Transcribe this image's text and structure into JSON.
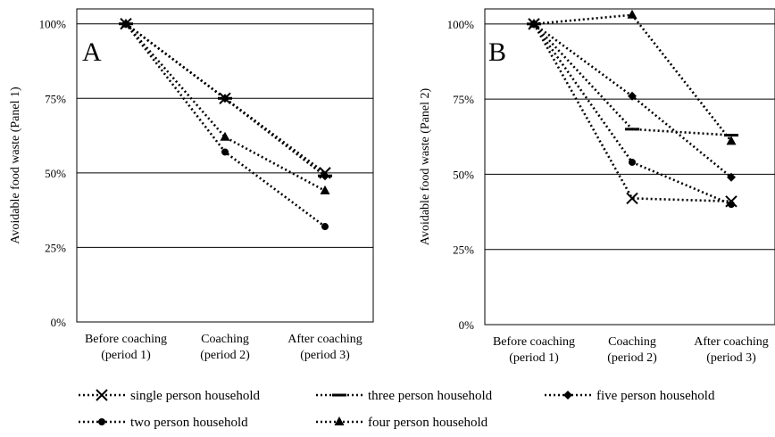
{
  "chart_data": [
    {
      "type": "line",
      "panel_label": "A",
      "ylabel": "Avoidable food waste (Panel 1)",
      "categories": [
        [
          "Before coaching",
          "(period 1)"
        ],
        [
          "Coaching",
          "(period 2)"
        ],
        [
          "After coaching",
          "(period 3)"
        ]
      ],
      "y_ticks": [
        "0%",
        "25%",
        "50%",
        "75%",
        "100%"
      ],
      "ylim": [
        0,
        105
      ],
      "grid": true,
      "series": [
        {
          "name": "single person household",
          "marker": "x",
          "values": [
            100,
            75,
            50
          ]
        },
        {
          "name": "two person household",
          "marker": "circle",
          "values": [
            100,
            57,
            32
          ]
        },
        {
          "name": "three person household",
          "marker": "dash",
          "values": [
            100,
            75,
            49
          ]
        },
        {
          "name": "four person household",
          "marker": "triangle",
          "values": [
            100,
            62,
            44
          ]
        },
        {
          "name": "five person household",
          "marker": "diamond",
          "values": [
            100,
            75,
            49
          ]
        }
      ]
    },
    {
      "type": "line",
      "panel_label": "B",
      "ylabel": "Avoidable food waste (Panel 2)",
      "categories": [
        [
          "Before coaching",
          "(period 1)"
        ],
        [
          "Coaching",
          "(period 2)"
        ],
        [
          "After coaching",
          "(period 3)"
        ]
      ],
      "y_ticks": [
        "0%",
        "25%",
        "50%",
        "75%",
        "100%"
      ],
      "ylim": [
        0,
        105
      ],
      "grid": true,
      "series": [
        {
          "name": "single person household",
          "marker": "x",
          "values": [
            100,
            42,
            41
          ]
        },
        {
          "name": "two person household",
          "marker": "circle",
          "values": [
            100,
            54,
            40
          ]
        },
        {
          "name": "three person household",
          "marker": "dash",
          "values": [
            100,
            65,
            63
          ]
        },
        {
          "name": "four person household",
          "marker": "triangle",
          "values": [
            100,
            103,
            61
          ]
        },
        {
          "name": "five person household",
          "marker": "diamond",
          "values": [
            100,
            76,
            49
          ]
        }
      ]
    }
  ],
  "legend": [
    {
      "label": "single person household",
      "marker": "x"
    },
    {
      "label": "three person household",
      "marker": "dash"
    },
    {
      "label": "five person household",
      "marker": "diamond"
    },
    {
      "label": "two person household",
      "marker": "circle"
    },
    {
      "label": "four person household",
      "marker": "triangle"
    }
  ]
}
